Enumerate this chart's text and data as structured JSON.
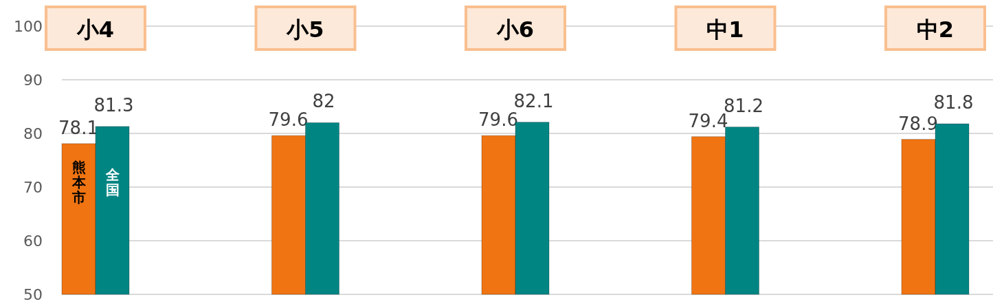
{
  "chart_data": {
    "type": "bar",
    "categories": [
      "小4",
      "小5",
      "小6",
      "中1",
      "中2"
    ],
    "series": [
      {
        "name": "熊本市",
        "color": "#f07412",
        "values": [
          78.1,
          79.6,
          79.6,
          79.4,
          78.9
        ]
      },
      {
        "name": "全国",
        "color": "#008583",
        "values": [
          81.3,
          82,
          82.1,
          81.2,
          81.8
        ]
      }
    ],
    "ylim": [
      50,
      100
    ],
    "yticks": [
      50,
      60,
      70,
      80,
      90,
      100
    ],
    "grid": "y",
    "data_labels": true,
    "legend": false
  }
}
